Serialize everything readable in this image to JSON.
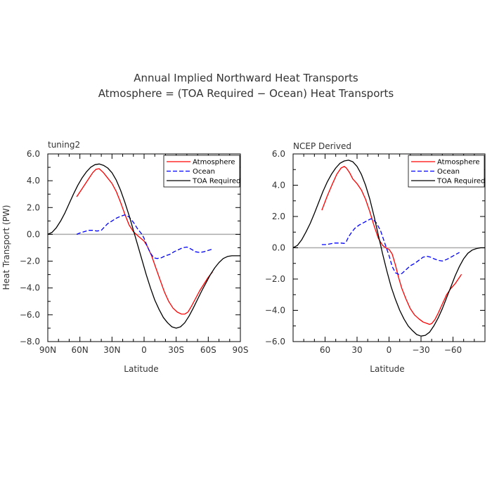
{
  "figure": {
    "title_line1": "Annual Implied Northward Heat Transports",
    "title_line2": "Atmosphere = (TOA Required − Ocean) Heat Transports"
  },
  "colors": {
    "atmosphere": "#ff0000",
    "ocean": "#0000ff",
    "toa": "#000000",
    "zero_line": "#aaaaaa"
  },
  "chart_data": [
    {
      "type": "line",
      "panel_label": "tuning2",
      "xlabel": "Latitude",
      "ylabel": "Heat Transport (PW)",
      "xlim": [
        90,
        -90
      ],
      "ylim": [
        -8,
        6
      ],
      "x_ticks": [
        90,
        60,
        30,
        0,
        -30,
        -60,
        -90
      ],
      "x_tick_labels": [
        "90N",
        "60N",
        "30N",
        "0",
        "30S",
        "60S",
        "90S"
      ],
      "y_ticks": [
        -8,
        -6,
        -4,
        -2,
        0,
        2,
        4,
        6
      ],
      "y_tick_labels": [
        "−8.0",
        "−6.0",
        "−4.0",
        "−2.0",
        "0.0",
        "2.0",
        "4.0",
        "6.0"
      ],
      "legend_position": "top-right",
      "series": [
        {
          "name": "Atmosphere",
          "style": "solid",
          "x": [
            63,
            58,
            53,
            48,
            45,
            42,
            38,
            34,
            30,
            26,
            22,
            18,
            14,
            10,
            6,
            3,
            0,
            -3,
            -7,
            -11,
            -15,
            -19,
            -23,
            -27,
            -31,
            -35,
            -38,
            -41,
            -44,
            -48,
            -52,
            -56,
            -60,
            -64
          ],
          "y": [
            2.8,
            3.4,
            4.0,
            4.6,
            4.85,
            4.9,
            4.6,
            4.2,
            3.8,
            3.2,
            2.4,
            1.5,
            0.7,
            0.2,
            -0.1,
            -0.3,
            -0.5,
            -0.9,
            -1.6,
            -2.5,
            -3.4,
            -4.3,
            -5.0,
            -5.5,
            -5.8,
            -5.95,
            -5.95,
            -5.8,
            -5.4,
            -4.8,
            -4.2,
            -3.7,
            -3.2,
            -2.8
          ]
        },
        {
          "name": "Ocean",
          "style": "dashed",
          "x": [
            63,
            60,
            56,
            52,
            48,
            44,
            40,
            37,
            34,
            30,
            26,
            22,
            18,
            14,
            10,
            6,
            2,
            0,
            -3,
            -6,
            -9,
            -12,
            -16,
            -20,
            -24,
            -28,
            -32,
            -36,
            -40,
            -44,
            -48,
            -52,
            -56,
            -60,
            -64
          ],
          "y": [
            0.0,
            0.1,
            0.2,
            0.3,
            0.3,
            0.25,
            0.3,
            0.55,
            0.8,
            1.0,
            1.2,
            1.35,
            1.45,
            1.3,
            0.9,
            0.4,
            0.0,
            -0.3,
            -0.9,
            -1.4,
            -1.75,
            -1.8,
            -1.75,
            -1.6,
            -1.5,
            -1.3,
            -1.15,
            -1.0,
            -0.95,
            -1.1,
            -1.3,
            -1.35,
            -1.3,
            -1.2,
            -1.1
          ]
        },
        {
          "name": "TOA Required",
          "style": "solid",
          "x": [
            90,
            86,
            82,
            78,
            74,
            70,
            66,
            62,
            58,
            54,
            50,
            46,
            42,
            38,
            34,
            30,
            26,
            22,
            18,
            14,
            10,
            6,
            2,
            -2,
            -6,
            -10,
            -14,
            -18,
            -22,
            -26,
            -30,
            -34,
            -38,
            -42,
            -46,
            -50,
            -54,
            -58,
            -62,
            -66,
            -70,
            -74,
            -78,
            -82,
            -86,
            -90
          ],
          "y": [
            0.0,
            0.15,
            0.5,
            1.0,
            1.6,
            2.3,
            3.0,
            3.65,
            4.2,
            4.65,
            5.0,
            5.2,
            5.25,
            5.15,
            4.95,
            4.6,
            4.05,
            3.3,
            2.4,
            1.4,
            0.3,
            -0.8,
            -1.9,
            -3.0,
            -4.0,
            -4.9,
            -5.6,
            -6.2,
            -6.6,
            -6.9,
            -7.0,
            -6.9,
            -6.6,
            -6.1,
            -5.5,
            -4.85,
            -4.2,
            -3.6,
            -3.0,
            -2.5,
            -2.1,
            -1.8,
            -1.65,
            -1.6,
            -1.6,
            -1.6
          ]
        }
      ]
    },
    {
      "type": "line",
      "panel_label": "NCEP Derived",
      "xlabel": "Latitude",
      "ylabel": "",
      "xlim": [
        90,
        -90
      ],
      "ylim": [
        -6,
        6
      ],
      "x_ticks": [
        60,
        30,
        0,
        -30,
        -60
      ],
      "x_tick_labels": [
        "60",
        "30",
        "0",
        "−30",
        "−60"
      ],
      "y_ticks": [
        -6,
        -4,
        -2,
        0,
        2,
        4,
        6
      ],
      "y_tick_labels": [
        "−6.0",
        "−4.0",
        "−2.0",
        "0.0",
        "2.0",
        "4.0",
        "6.0"
      ],
      "legend_position": "top-right",
      "series": [
        {
          "name": "Atmosphere",
          "style": "solid",
          "x": [
            63,
            58,
            53,
            49,
            45,
            42,
            40,
            37,
            34,
            30,
            26,
            22,
            18,
            14,
            10,
            6,
            2,
            0,
            -3,
            -6,
            -9,
            -12,
            -16,
            -20,
            -24,
            -28,
            -32,
            -36,
            -38,
            -40,
            -43,
            -46,
            -50,
            -54,
            -58,
            -62,
            -66,
            -68
          ],
          "y": [
            2.4,
            3.3,
            4.1,
            4.7,
            5.1,
            5.2,
            5.1,
            4.8,
            4.4,
            4.1,
            3.7,
            3.1,
            2.3,
            1.4,
            0.6,
            0.15,
            -0.05,
            -0.1,
            -0.4,
            -1.1,
            -1.9,
            -2.6,
            -3.3,
            -3.9,
            -4.3,
            -4.55,
            -4.75,
            -4.85,
            -4.9,
            -4.85,
            -4.6,
            -4.2,
            -3.6,
            -3.0,
            -2.6,
            -2.3,
            -1.9,
            -1.7
          ]
        },
        {
          "name": "Ocean",
          "style": "dashed",
          "x": [
            63,
            59,
            55,
            51,
            48,
            45,
            42,
            40,
            38,
            35,
            32,
            28,
            24,
            20,
            17,
            15,
            12,
            8,
            4,
            0,
            -3,
            -6,
            -9,
            -12,
            -16,
            -20,
            -24,
            -28,
            -32,
            -36,
            -39,
            -42,
            -46,
            -50,
            -54,
            -58,
            -62,
            -66
          ],
          "y": [
            0.2,
            0.2,
            0.25,
            0.3,
            0.3,
            0.3,
            0.28,
            0.4,
            0.7,
            1.0,
            1.25,
            1.45,
            1.6,
            1.75,
            1.85,
            1.8,
            1.6,
            1.1,
            0.3,
            -0.5,
            -1.2,
            -1.6,
            -1.7,
            -1.65,
            -1.4,
            -1.15,
            -1.0,
            -0.8,
            -0.6,
            -0.55,
            -0.6,
            -0.7,
            -0.8,
            -0.85,
            -0.75,
            -0.6,
            -0.45,
            -0.3
          ]
        },
        {
          "name": "TOA Required",
          "style": "solid",
          "x": [
            90,
            86,
            82,
            78,
            74,
            70,
            66,
            62,
            58,
            54,
            50,
            46,
            42,
            38,
            34,
            30,
            26,
            22,
            18,
            14,
            10,
            6,
            2,
            -2,
            -6,
            -10,
            -14,
            -18,
            -22,
            -26,
            -30,
            -34,
            -38,
            -42,
            -46,
            -50,
            -54,
            -58,
            -62,
            -66,
            -70,
            -74,
            -78,
            -82,
            -86,
            -90
          ],
          "y": [
            0.0,
            0.15,
            0.5,
            1.0,
            1.55,
            2.2,
            2.9,
            3.6,
            4.2,
            4.7,
            5.1,
            5.4,
            5.55,
            5.6,
            5.5,
            5.2,
            4.7,
            4.0,
            3.1,
            2.0,
            0.8,
            -0.4,
            -1.5,
            -2.5,
            -3.3,
            -4.0,
            -4.55,
            -5.0,
            -5.3,
            -5.55,
            -5.65,
            -5.6,
            -5.4,
            -5.0,
            -4.5,
            -3.9,
            -3.2,
            -2.5,
            -1.8,
            -1.2,
            -0.7,
            -0.35,
            -0.15,
            -0.05,
            0.0,
            0.0
          ]
        }
      ]
    }
  ]
}
